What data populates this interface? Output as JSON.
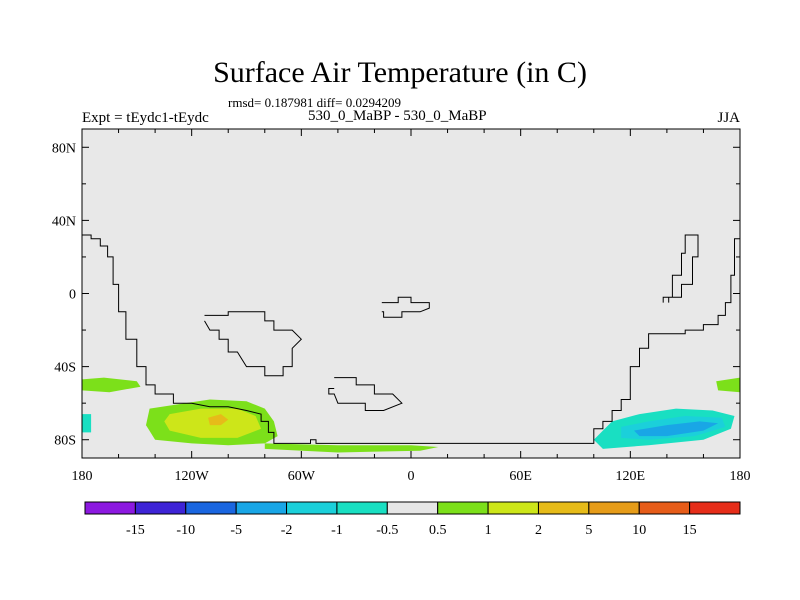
{
  "chart_data": {
    "type": "heatmap",
    "title": "Surface Air Temperature (in C)",
    "stats_text": "rmsd= 0.187981 diff= 0.0294209",
    "left_label": "Expt = tEydc1-tEydc",
    "center_label": "530_0_MaBP - 530_0_MaBP",
    "right_label": "JJA",
    "xlim": [
      -180,
      180
    ],
    "ylim": [
      -90,
      90
    ],
    "x_ticks": [
      {
        "value": -180,
        "label": "180"
      },
      {
        "value": -120,
        "label": "120W"
      },
      {
        "value": -60,
        "label": "60W"
      },
      {
        "value": 0,
        "label": "0"
      },
      {
        "value": 60,
        "label": "60E"
      },
      {
        "value": 120,
        "label": "120E"
      },
      {
        "value": 180,
        "label": "180"
      }
    ],
    "y_ticks": [
      {
        "value": 80,
        "label": "80N"
      },
      {
        "value": 40,
        "label": "40N"
      },
      {
        "value": 0,
        "label": "0"
      },
      {
        "value": -40,
        "label": "40S"
      },
      {
        "value": -80,
        "label": "80S"
      }
    ],
    "background_color": "#e8e8e8",
    "colorbar": {
      "colors": [
        "#8c19e0",
        "#3e24d6",
        "#1a66e0",
        "#19a6e6",
        "#1bd0da",
        "#19dfc2",
        "#e6e6e6",
        "#7ce01a",
        "#cde619",
        "#e6bb19",
        "#e69c19",
        "#e65c19",
        "#e62d19"
      ],
      "labels": [
        "-15",
        "-10",
        "-5",
        "-2",
        "-1",
        "-0.5",
        "0.5",
        "1",
        "2",
        "5",
        "10",
        "15"
      ]
    },
    "anomaly_regions": [
      {
        "name": "south-pacific-warm",
        "level": "1 to 2",
        "color": "#7ce01a",
        "points": [
          [
            -143,
            -63
          ],
          [
            -130,
            -61
          ],
          [
            -110,
            -58
          ],
          [
            -90,
            -59
          ],
          [
            -80,
            -63
          ],
          [
            -75,
            -70
          ],
          [
            -73,
            -78
          ],
          [
            -80,
            -82
          ],
          [
            -100,
            -83
          ],
          [
            -120,
            -82
          ],
          [
            -140,
            -80
          ],
          [
            -145,
            -72
          ]
        ]
      },
      {
        "name": "south-pacific-warmer",
        "level": "2 to 5",
        "color": "#cde619",
        "points": [
          [
            -132,
            -66
          ],
          [
            -115,
            -63
          ],
          [
            -95,
            -63
          ],
          [
            -85,
            -67
          ],
          [
            -82,
            -74
          ],
          [
            -95,
            -79
          ],
          [
            -115,
            -79
          ],
          [
            -132,
            -75
          ],
          [
            -135,
            -70
          ]
        ]
      },
      {
        "name": "south-pacific-core",
        "level": "5 to 10",
        "color": "#e6bb19",
        "points": [
          [
            -111,
            -68
          ],
          [
            -104,
            -66
          ],
          [
            -100,
            -69
          ],
          [
            -104,
            -72
          ],
          [
            -110,
            -72
          ]
        ]
      },
      {
        "name": "antarctic-coast-warm",
        "level": "1 to 2",
        "color": "#7ce01a",
        "points": [
          [
            -80,
            -82
          ],
          [
            -40,
            -83
          ],
          [
            0,
            -83
          ],
          [
            15,
            -84
          ],
          [
            5,
            -86
          ],
          [
            -40,
            -87
          ],
          [
            -80,
            -85
          ]
        ]
      },
      {
        "name": "west-edge-warm",
        "level": "1 to 2",
        "color": "#7ce01a",
        "points": [
          [
            -180,
            -47
          ],
          [
            -168,
            -46
          ],
          [
            -150,
            -48
          ],
          [
            -148,
            -51
          ],
          [
            -165,
            -54
          ],
          [
            -180,
            -53
          ]
        ]
      },
      {
        "name": "east-edge-warm",
        "level": "1 to 2",
        "color": "#7ce01a",
        "points": [
          [
            167,
            -48
          ],
          [
            180,
            -46
          ],
          [
            180,
            -54
          ],
          [
            168,
            -53
          ]
        ]
      },
      {
        "name": "indian-ocean-cool",
        "level": "-1 to -0.5",
        "color": "#19dfc2",
        "points": [
          [
            100,
            -80
          ],
          [
            110,
            -70
          ],
          [
            125,
            -66
          ],
          [
            145,
            -63
          ],
          [
            165,
            -64
          ],
          [
            177,
            -67
          ],
          [
            175,
            -74
          ],
          [
            160,
            -80
          ],
          [
            130,
            -83
          ],
          [
            105,
            -85
          ]
        ]
      },
      {
        "name": "indian-ocean-colder",
        "level": "-2 to -1",
        "color": "#1bd0da",
        "points": [
          [
            115,
            -73
          ],
          [
            130,
            -70
          ],
          [
            150,
            -67
          ],
          [
            170,
            -68
          ],
          [
            172,
            -73
          ],
          [
            155,
            -78
          ],
          [
            130,
            -80
          ],
          [
            115,
            -79
          ]
        ]
      },
      {
        "name": "indian-ocean-coldest",
        "level": "-5 to -2",
        "color": "#19a6e6",
        "points": [
          [
            122,
            -75
          ],
          [
            140,
            -72
          ],
          [
            158,
            -70
          ],
          [
            168,
            -71
          ],
          [
            160,
            -75
          ],
          [
            140,
            -78
          ],
          [
            125,
            -78
          ]
        ]
      },
      {
        "name": "west-edge-cool",
        "level": "-1 to -0.5",
        "color": "#19dfc2",
        "points": [
          [
            -180,
            -66
          ],
          [
            -175,
            -66
          ],
          [
            -175,
            -76
          ],
          [
            -180,
            -76
          ]
        ]
      }
    ],
    "coastlines": [
      {
        "name": "west-continent-coast",
        "points": [
          [
            -180,
            32
          ],
          [
            -175,
            32
          ],
          [
            -175,
            30
          ],
          [
            -170,
            30
          ],
          [
            -170,
            26
          ],
          [
            -166,
            26
          ],
          [
            -166,
            20
          ],
          [
            -163,
            20
          ],
          [
            -163,
            5
          ],
          [
            -160,
            5
          ],
          [
            -160,
            -10
          ],
          [
            -156,
            -10
          ],
          [
            -156,
            -25
          ],
          [
            -150,
            -25
          ],
          [
            -150,
            -40
          ],
          [
            -145,
            -40
          ],
          [
            -145,
            -50
          ],
          [
            -140,
            -50
          ],
          [
            -140,
            -55
          ],
          [
            -130,
            -55
          ],
          [
            -130,
            -60
          ],
          [
            -120,
            -60
          ],
          [
            -110,
            -62
          ],
          [
            -100,
            -62
          ],
          [
            -90,
            -64
          ],
          [
            -82,
            -66
          ],
          [
            -82,
            -70
          ],
          [
            -78,
            -70
          ],
          [
            -78,
            -76
          ],
          [
            -75,
            -76
          ],
          [
            -75,
            -82
          ],
          [
            -60,
            -82
          ],
          [
            -55,
            -82
          ],
          [
            -55,
            -80
          ],
          [
            -52,
            -80
          ],
          [
            -52,
            -82
          ],
          [
            100,
            -82
          ],
          [
            100,
            -74
          ],
          [
            105,
            -74
          ],
          [
            105,
            -70
          ],
          [
            110,
            -70
          ],
          [
            110,
            -64
          ],
          [
            115,
            -64
          ],
          [
            115,
            -58
          ],
          [
            120,
            -58
          ],
          [
            120,
            -40
          ],
          [
            125,
            -40
          ],
          [
            125,
            -30
          ],
          [
            130,
            -30
          ],
          [
            130,
            -22
          ],
          [
            150,
            -22
          ],
          [
            150,
            -20
          ],
          [
            160,
            -20
          ],
          [
            160,
            -17
          ],
          [
            168,
            -17
          ],
          [
            168,
            -12
          ],
          [
            172,
            -12
          ],
          [
            172,
            -5
          ],
          [
            175,
            -5
          ],
          [
            175,
            10
          ],
          [
            177,
            10
          ],
          [
            177,
            30
          ],
          [
            180,
            30
          ]
        ]
      },
      {
        "name": "east-island-coast",
        "points": [
          [
            138,
            -5
          ],
          [
            138,
            -2
          ],
          [
            143,
            -2
          ],
          [
            143,
            10
          ],
          [
            148,
            10
          ],
          [
            148,
            22
          ],
          [
            150,
            22
          ],
          [
            150,
            32
          ],
          [
            157,
            32
          ],
          [
            157,
            20
          ],
          [
            154,
            20
          ],
          [
            154,
            5
          ],
          [
            148,
            5
          ],
          [
            148,
            -2
          ],
          [
            141,
            -2
          ],
          [
            141,
            -5
          ]
        ]
      },
      {
        "name": "central-island-1",
        "points": [
          [
            -113,
            -12
          ],
          [
            -100,
            -12
          ],
          [
            -100,
            -10
          ],
          [
            -80,
            -10
          ],
          [
            -80,
            -15
          ],
          [
            -75,
            -15
          ],
          [
            -75,
            -20
          ],
          [
            -65,
            -20
          ],
          [
            -60,
            -25
          ],
          [
            -65,
            -30
          ],
          [
            -65,
            -40
          ],
          [
            -70,
            -40
          ],
          [
            -70,
            -45
          ],
          [
            -80,
            -45
          ],
          [
            -80,
            -40
          ],
          [
            -90,
            -40
          ],
          [
            -95,
            -32
          ],
          [
            -100,
            -32
          ],
          [
            -100,
            -25
          ],
          [
            -105,
            -25
          ],
          [
            -105,
            -20
          ],
          [
            -110,
            -20
          ],
          [
            -113,
            -15
          ]
        ]
      },
      {
        "name": "central-island-2",
        "points": [
          [
            -16,
            -5
          ],
          [
            -7,
            -5
          ],
          [
            -7,
            -2
          ],
          [
            0,
            -2
          ],
          [
            0,
            -5
          ],
          [
            10,
            -5
          ],
          [
            10,
            -8
          ],
          [
            5,
            -10
          ],
          [
            -5,
            -10
          ],
          [
            -5,
            -13
          ],
          [
            -15,
            -13
          ],
          [
            -15,
            -10
          ],
          [
            -16,
            -10
          ]
        ]
      },
      {
        "name": "central-island-3",
        "points": [
          [
            -42,
            -46
          ],
          [
            -30,
            -46
          ],
          [
            -30,
            -50
          ],
          [
            -20,
            -50
          ],
          [
            -20,
            -55
          ],
          [
            -10,
            -55
          ],
          [
            -5,
            -60
          ],
          [
            -15,
            -64
          ],
          [
            -25,
            -64
          ],
          [
            -25,
            -60
          ],
          [
            -40,
            -60
          ],
          [
            -42,
            -55
          ],
          [
            -45,
            -55
          ],
          [
            -45,
            -52
          ],
          [
            -42,
            -52
          ]
        ]
      }
    ]
  }
}
